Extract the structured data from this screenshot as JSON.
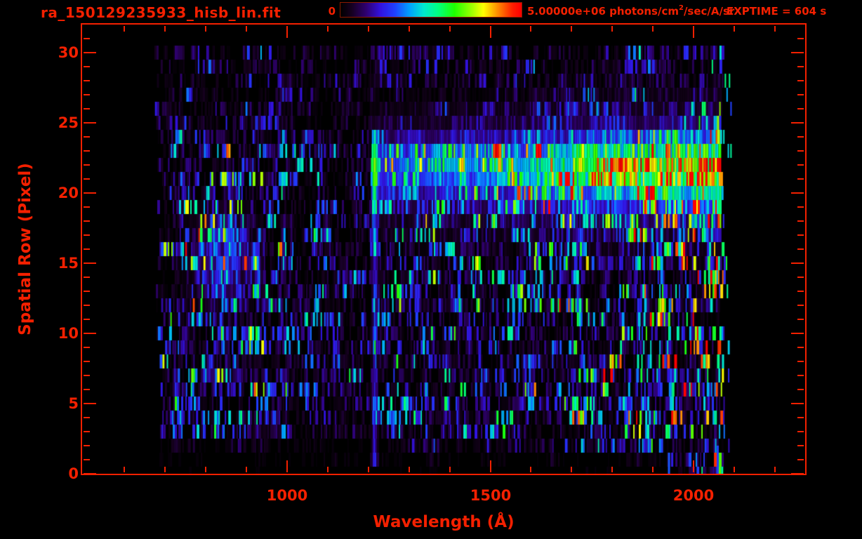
{
  "header": {
    "title": "ra_150129235933_hisb_lin.fit",
    "exptime_label": "EXPTIME = 604 s"
  },
  "colorbar": {
    "min_label": "0",
    "max_label_prefix": "5.00000e+06 photons/cm",
    "max_label_sup": "2",
    "max_label_suffix": "/sec/A/sr"
  },
  "axes": {
    "x": {
      "label": "Wavelength (Å)",
      "major_tick_labels": [
        "1000",
        "1500",
        "2000"
      ]
    },
    "y": {
      "label": "Spatial Row (Pixel)",
      "major_tick_labels": [
        "0",
        "5",
        "10",
        "15",
        "20",
        "25",
        "30"
      ]
    }
  },
  "colors": {
    "background": "#000000",
    "accent_red": "#f42000",
    "colorbar_border": "#8a1a00"
  },
  "chart_data": {
    "type": "heatmap",
    "title": "ra_150129235933_hisb_lin.fit",
    "xlabel": "Wavelength (Å)",
    "ylabel": "Spatial Row (Pixel)",
    "xlim": [
      496,
      2274
    ],
    "ylim": [
      0,
      32
    ],
    "x_major_ticks": [
      1000,
      1500,
      2000
    ],
    "x_minor_tick_step": 100,
    "x_minor_tick_range": [
      600,
      2200
    ],
    "y_major_ticks": [
      0,
      5,
      10,
      15,
      20,
      25,
      30
    ],
    "y_minor_tick_step": 1,
    "y_minor_tick_range": [
      1,
      31
    ],
    "colorbar": {
      "min": 0,
      "max": 5000000,
      "units": "photons/cm^2/sec/A/sr"
    },
    "exptime_seconds": 604,
    "data_extent": {
      "wavelength_A": [
        682,
        2070
      ],
      "rows": [
        0,
        30
      ]
    },
    "colormap_stops": [
      [
        0.0,
        "#000000"
      ],
      [
        0.06,
        "#16001f"
      ],
      [
        0.14,
        "#2f0070"
      ],
      [
        0.22,
        "#3212e0"
      ],
      [
        0.3,
        "#2040ff"
      ],
      [
        0.38,
        "#00a0ff"
      ],
      [
        0.46,
        "#00e8d0"
      ],
      [
        0.54,
        "#00ff80"
      ],
      [
        0.63,
        "#1eff00"
      ],
      [
        0.72,
        "#96ff00"
      ],
      [
        0.79,
        "#ffff00"
      ],
      [
        0.87,
        "#ff8c00"
      ],
      [
        0.95,
        "#ff2000"
      ],
      [
        1.0,
        "#ff0000"
      ]
    ],
    "noise_envelope": {
      "wl_breaks": [
        1000,
        1250,
        1600,
        1850,
        1990
      ],
      "levels": [
        0.34,
        0.22,
        0.3,
        0.36,
        0.46,
        0.58
      ]
    },
    "features": {
      "continuum_band": {
        "row_center": 21.8,
        "row_sigma": 1.4,
        "wing_sigma": 2.9,
        "wl_start": 1206,
        "wl_end": 2072,
        "brightness_profile": [
          [
            1206,
            0.26
          ],
          [
            1500,
            0.31
          ],
          [
            1780,
            0.54
          ],
          [
            2070,
            0.67
          ]
        ]
      },
      "lyman_alpha_line": {
        "wl": 1216,
        "sigma_A": 4.5,
        "row_min": 1,
        "row_max": 24,
        "amp": 0.16
      },
      "diffuse_blue_patch": {
        "wl": 845,
        "wl_sigma": 48,
        "row_center": 15.3,
        "row_sigma": 2.2,
        "amp": 0.2
      },
      "detector_edge_artifacts": {
        "wl_start": 2052,
        "wl_end": 2075,
        "prob": 0.18
      },
      "stray_marks": [
        {
          "wl": 2057,
          "rows": [
            0,
            1.5
          ],
          "value": 0.3
        },
        {
          "wl": 1937,
          "rows": [
            0,
            1.0
          ],
          "value": 0.32
        }
      ]
    }
  }
}
